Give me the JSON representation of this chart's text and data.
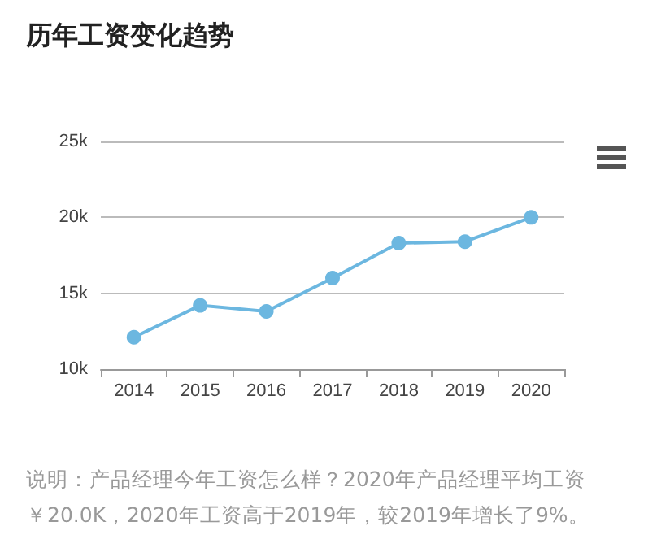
{
  "chart_data": {
    "type": "line",
    "title": "历年工资变化趋势",
    "categories": [
      "2014",
      "2015",
      "2016",
      "2017",
      "2018",
      "2019",
      "2020"
    ],
    "series": [
      {
        "color": "#6cb7e0",
        "values": [
          12100,
          14200,
          13800,
          16000,
          18300,
          18400,
          20000
        ]
      }
    ],
    "ylim": [
      10000,
      25000
    ],
    "yticks": [
      {
        "value": 10000,
        "label": "10k"
      },
      {
        "value": 15000,
        "label": "15k"
      },
      {
        "value": 20000,
        "label": "20k"
      },
      {
        "value": 25000,
        "label": "25k"
      }
    ],
    "grid": "y",
    "marker": "circle",
    "line_style": "solid",
    "annotations": [
      "说明：产品经理今年工资怎么样？2020年产品经理平均工资￥20.0K，2020年工资高于2019年，较2019年增长了9%。"
    ]
  }
}
